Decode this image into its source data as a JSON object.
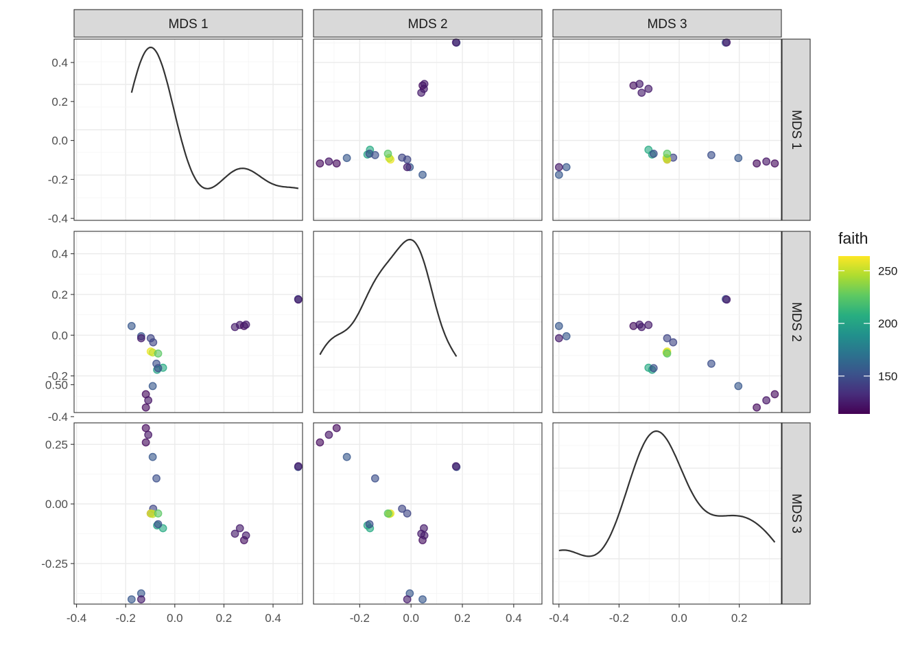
{
  "chart_data": {
    "type": "scatter",
    "layout": "pairs-matrix",
    "variables": [
      "MDS 1",
      "MDS 2",
      "MDS 3"
    ],
    "column_strips": [
      "MDS 1",
      "MDS 2",
      "MDS 3"
    ],
    "row_strips": [
      "MDS 1",
      "MDS 2",
      "MDS 3"
    ],
    "color_variable": "faith",
    "color_scale": "viridis",
    "color_range": [
      114,
      264
    ],
    "legend": {
      "title": "faith",
      "breaks": [
        150,
        200,
        250
      ],
      "labels": [
        "150",
        "200",
        "250"
      ],
      "position": "right"
    },
    "axis_ranges": {
      "MDS 1": [
        -0.41,
        0.52
      ],
      "MDS 2": [
        -0.38,
        0.51
      ],
      "MDS 3": [
        -0.42,
        0.34
      ]
    },
    "y_ticks": {
      "row1": {
        "values": [
          -0.4,
          -0.2,
          0.0,
          0.2,
          0.4
        ],
        "labels": [
          "-0.4",
          "-0.2",
          "0.0",
          "0.2",
          "0.4"
        ]
      },
      "row2": {
        "values": [
          -0.4,
          -0.2,
          0.0,
          0.2,
          0.4
        ],
        "labels": [
          "-0.4",
          "-0.2",
          "0.0",
          "0.2",
          "0.4"
        ]
      },
      "row3": {
        "values": [
          -0.25,
          0.0,
          0.25,
          0.5
        ],
        "labels": [
          "-0.25",
          "0.00",
          "0.25",
          "0.50"
        ]
      }
    },
    "x_ticks": {
      "col1": {
        "values": [
          -0.4,
          -0.2,
          0.0,
          0.2,
          0.4
        ],
        "labels": [
          "-0.4",
          "-0.2",
          "0.0",
          "0.2",
          "0.4"
        ]
      },
      "col2": {
        "values": [
          -0.2,
          0.0,
          0.2,
          0.4
        ],
        "labels": [
          "-0.2",
          "0.0",
          "0.2",
          "0.4"
        ]
      },
      "col3": {
        "values": [
          -0.4,
          -0.2,
          0.0,
          0.2
        ],
        "labels": [
          "-0.4",
          "-0.2",
          "0.0",
          "0.2"
        ]
      }
    },
    "points": [
      {
        "mds1": 0.502,
        "mds2": 0.177,
        "mds3": 0.155,
        "faith": 150
      },
      {
        "mds1": 0.503,
        "mds2": 0.175,
        "mds3": 0.158,
        "faith": 125
      },
      {
        "mds1": 0.245,
        "mds2": 0.04,
        "mds3": -0.125,
        "faith": 125
      },
      {
        "mds1": 0.265,
        "mds2": 0.05,
        "mds3": -0.102,
        "faith": 125
      },
      {
        "mds1": 0.282,
        "mds2": 0.045,
        "mds3": -0.152,
        "faith": 120
      },
      {
        "mds1": 0.29,
        "mds2": 0.052,
        "mds3": -0.132,
        "faith": 125
      },
      {
        "mds1": -0.118,
        "mds2": -0.29,
        "mds3": 0.318,
        "faith": 118
      },
      {
        "mds1": -0.108,
        "mds2": -0.32,
        "mds3": 0.29,
        "faith": 122
      },
      {
        "mds1": -0.118,
        "mds2": -0.355,
        "mds3": 0.258,
        "faith": 118
      },
      {
        "mds1": -0.09,
        "mds2": -0.25,
        "mds3": 0.197,
        "faith": 155
      },
      {
        "mds1": -0.075,
        "mds2": -0.14,
        "mds3": 0.107,
        "faith": 150
      },
      {
        "mds1": -0.176,
        "mds2": 0.045,
        "mds3": -0.4,
        "faith": 155
      },
      {
        "mds1": -0.137,
        "mds2": -0.005,
        "mds3": -0.375,
        "faith": 155
      },
      {
        "mds1": -0.137,
        "mds2": -0.015,
        "mds3": -0.4,
        "faith": 125
      },
      {
        "mds1": -0.098,
        "mds2": -0.015,
        "mds3": -0.04,
        "faith": 145
      },
      {
        "mds1": -0.088,
        "mds2": -0.035,
        "mds3": -0.02,
        "faith": 145
      },
      {
        "mds1": -0.098,
        "mds2": -0.08,
        "mds3": -0.04,
        "faith": 260
      },
      {
        "mds1": -0.09,
        "mds2": -0.085,
        "mds3": -0.042,
        "faith": 250
      },
      {
        "mds1": -0.068,
        "mds2": -0.09,
        "mds3": -0.04,
        "faith": 225
      },
      {
        "mds1": -0.072,
        "mds2": -0.17,
        "mds3": -0.09,
        "faith": 200
      },
      {
        "mds1": -0.048,
        "mds2": -0.16,
        "mds3": -0.102,
        "faith": 205
      },
      {
        "mds1": -0.068,
        "mds2": -0.162,
        "mds3": -0.085,
        "faith": 150
      }
    ]
  }
}
